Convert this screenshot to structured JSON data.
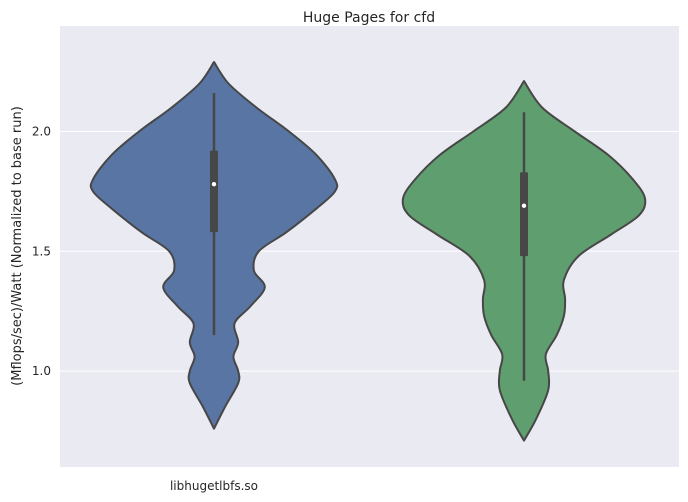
{
  "chart_data": {
    "type": "violin",
    "title": "Huge Pages for cfd",
    "xlabel": "",
    "ylabel": "(Mflops/sec)/Watt (Normalized to base run)",
    "ylim": [
      0.6,
      2.44
    ],
    "yticks": [
      1.0,
      1.5,
      2.0
    ],
    "ytick_labels": [
      "1.0",
      "1.5",
      "2.0"
    ],
    "categories": [
      "libhugetlbfs.so",
      ""
    ],
    "grid": true,
    "series": [
      {
        "color": "#5975a4",
        "violin_min": 0.76,
        "violin_max": 2.29,
        "whisker_low": 1.15,
        "whisker_high": 2.16,
        "q1": 1.58,
        "q3": 1.92,
        "median": 1.78,
        "density": [
          [
            0.76,
            0.0
          ],
          [
            0.85,
            0.09
          ],
          [
            0.95,
            0.2
          ],
          [
            1.0,
            0.2
          ],
          [
            1.06,
            0.16
          ],
          [
            1.12,
            0.2
          ],
          [
            1.2,
            0.17
          ],
          [
            1.27,
            0.3
          ],
          [
            1.35,
            0.42
          ],
          [
            1.42,
            0.33
          ],
          [
            1.5,
            0.37
          ],
          [
            1.58,
            0.6
          ],
          [
            1.68,
            0.85
          ],
          [
            1.75,
            1.0
          ],
          [
            1.8,
            1.0
          ],
          [
            1.9,
            0.85
          ],
          [
            2.0,
            0.62
          ],
          [
            2.1,
            0.35
          ],
          [
            2.2,
            0.12
          ],
          [
            2.29,
            0.0
          ]
        ]
      },
      {
        "color": "#5f9e6e",
        "violin_min": 0.71,
        "violin_max": 2.21,
        "whisker_low": 0.96,
        "whisker_high": 2.08,
        "q1": 1.48,
        "q3": 1.83,
        "median": 1.69,
        "density": [
          [
            0.71,
            0.0
          ],
          [
            0.8,
            0.1
          ],
          [
            0.92,
            0.2
          ],
          [
            1.0,
            0.2
          ],
          [
            1.07,
            0.18
          ],
          [
            1.15,
            0.27
          ],
          [
            1.23,
            0.33
          ],
          [
            1.3,
            0.34
          ],
          [
            1.38,
            0.33
          ],
          [
            1.48,
            0.45
          ],
          [
            1.57,
            0.72
          ],
          [
            1.65,
            0.95
          ],
          [
            1.72,
            1.0
          ],
          [
            1.8,
            0.9
          ],
          [
            1.9,
            0.7
          ],
          [
            2.0,
            0.42
          ],
          [
            2.1,
            0.15
          ],
          [
            2.21,
            0.0
          ]
        ]
      }
    ]
  }
}
